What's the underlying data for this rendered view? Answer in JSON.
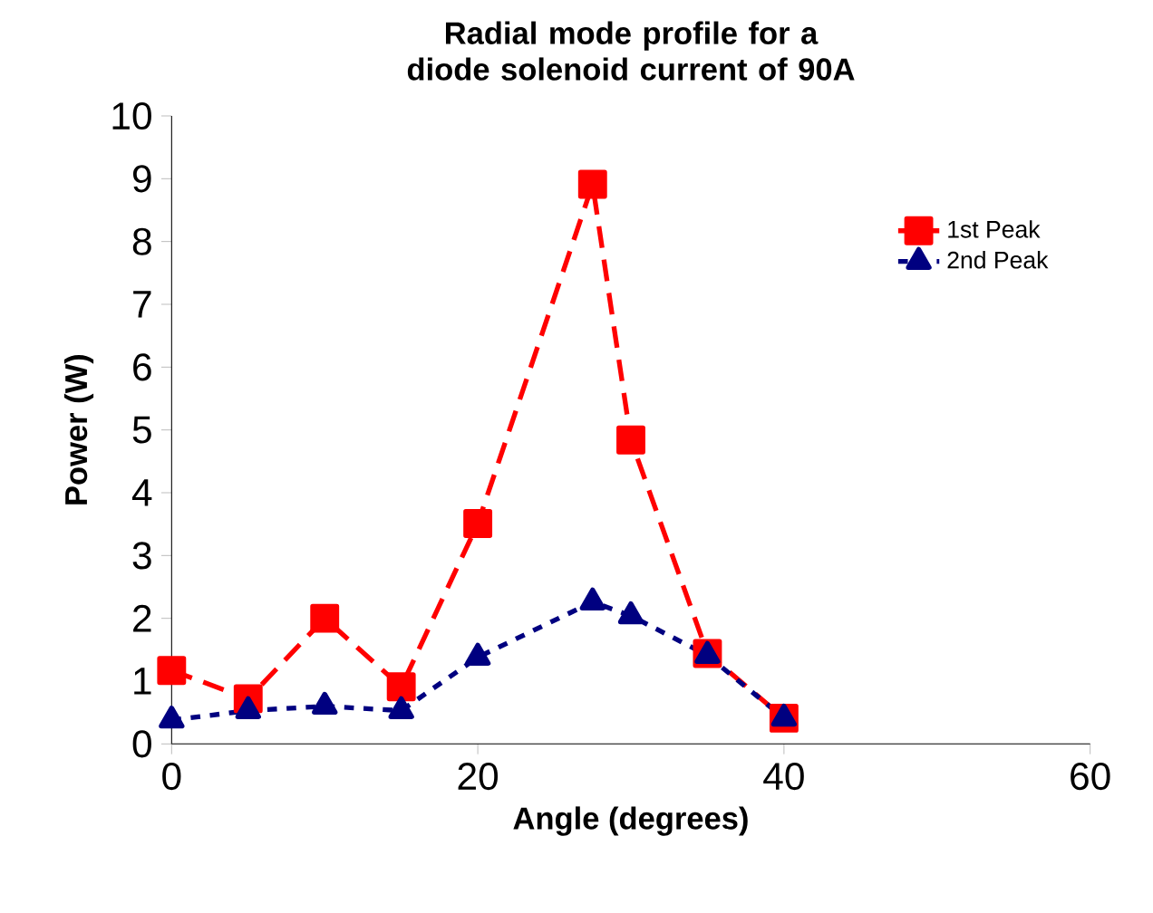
{
  "chart_data": {
    "type": "line",
    "title": "Radial mode profile for a diode solenoid current of 90A",
    "xlabel": "Angle (degrees)",
    "ylabel": "Power (W)",
    "x": [
      0,
      5,
      10,
      15,
      20,
      27.5,
      30,
      35,
      40
    ],
    "series": [
      {
        "name": "1st Peak",
        "color": "#ff0000",
        "marker": "square",
        "line_style": "dashed",
        "values": [
          1.17,
          0.72,
          2.0,
          0.91,
          3.51,
          8.91,
          4.84,
          1.44,
          0.41
        ]
      },
      {
        "name": "2nd Peak",
        "color": "#000080",
        "marker": "triangle",
        "line_style": "dotted",
        "values": [
          0.38,
          0.53,
          0.6,
          0.53,
          1.38,
          2.26,
          2.04,
          1.41,
          0.41
        ]
      }
    ],
    "xlim": [
      0,
      60
    ],
    "xticks": [
      0,
      20,
      40,
      60
    ],
    "ylim": [
      0,
      10
    ],
    "yticks": [
      0,
      1,
      2,
      3,
      4,
      5,
      6,
      7,
      8,
      9,
      10
    ],
    "grid": false,
    "legend": "right"
  }
}
